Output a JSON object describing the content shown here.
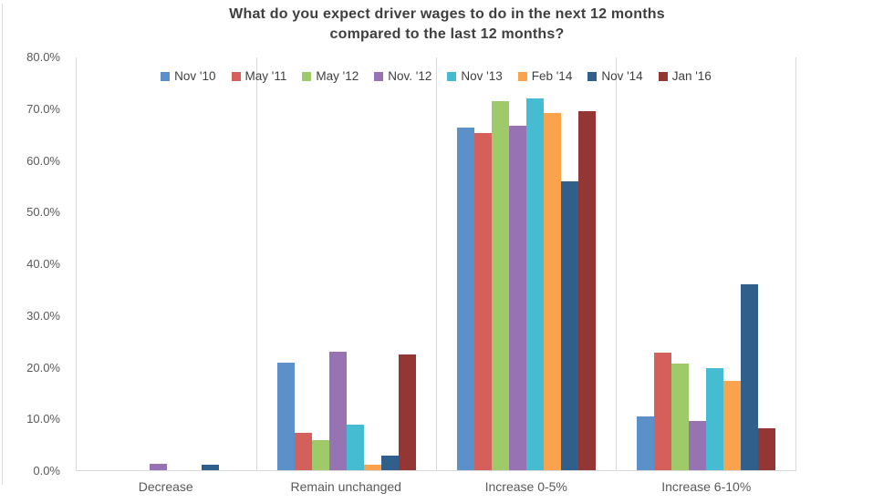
{
  "title": {
    "line1": "What do you expect driver wages to do in the next 12 months",
    "line2": "compared to the last 12 months?"
  },
  "chart_data": {
    "type": "bar",
    "title": "What do you expect driver wages to do in the next 12 months compared to the last 12 months?",
    "categories": [
      "Decrease",
      "Remain unchanged",
      "Increase 0-5%",
      "Increase 6-10%"
    ],
    "series": [
      {
        "name": "Nov '10",
        "color": "#5B90C8",
        "values": [
          0,
          20.8,
          66.4,
          10.4
        ]
      },
      {
        "name": "May '11",
        "color": "#D45F5B",
        "values": [
          0,
          7.2,
          65.3,
          22.8
        ]
      },
      {
        "name": "May '12",
        "color": "#9FCA6A",
        "values": [
          0,
          5.8,
          71.6,
          20.7
        ]
      },
      {
        "name": "Nov. '12",
        "color": "#9873B3",
        "values": [
          1.3,
          23.0,
          66.7,
          9.5
        ]
      },
      {
        "name": "Nov '13",
        "color": "#45BCD2",
        "values": [
          0,
          8.8,
          72.0,
          19.8
        ]
      },
      {
        "name": "Feb '14",
        "color": "#FAA34C",
        "values": [
          0,
          1.0,
          69.2,
          17.3
        ]
      },
      {
        "name": "Nov '14",
        "color": "#305F8C",
        "values": [
          1.0,
          2.8,
          56.0,
          36.0
        ]
      },
      {
        "name": "Jan '16",
        "color": "#943734",
        "values": [
          0,
          22.5,
          69.6,
          8.2
        ]
      }
    ],
    "ylim": [
      0,
      80
    ],
    "y_ticks": [
      "80.0%",
      "70.0%",
      "60.0%",
      "50.0%",
      "40.0%",
      "30.0%",
      "20.0%",
      "10.0%",
      "0.0%"
    ],
    "xlabel": "",
    "ylabel": "",
    "grid": "vertical-category-separators",
    "legend_position": "top-inside"
  },
  "colors": {
    "axis_text": "#595959",
    "title_text": "#3F3F3F",
    "gridline": "#D9D9D9",
    "background": "#FFFFFF"
  }
}
